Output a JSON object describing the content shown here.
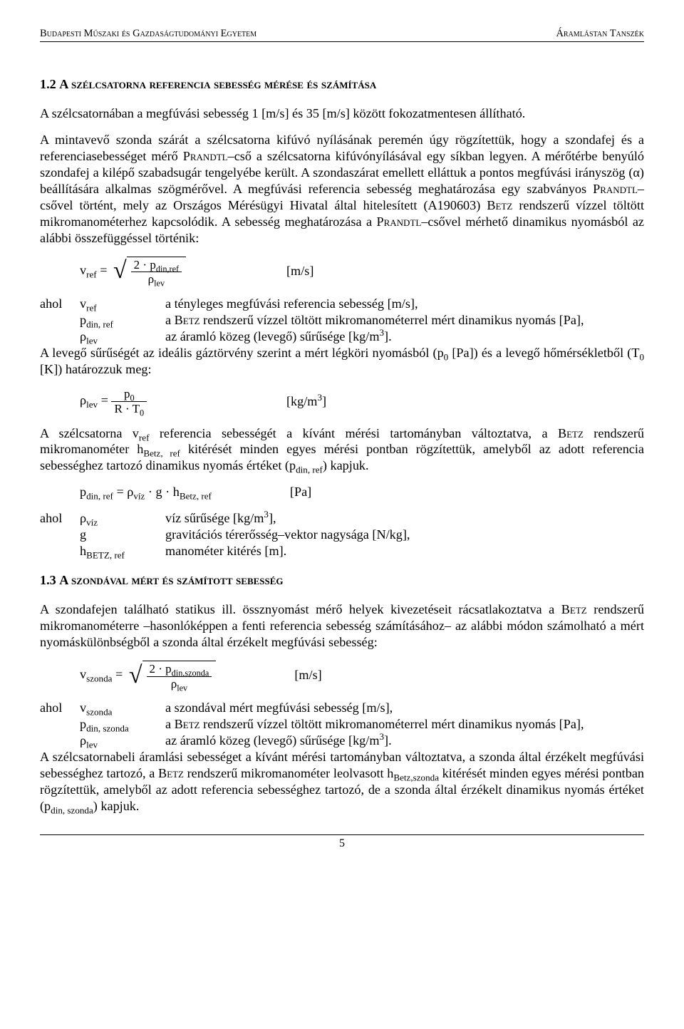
{
  "header": {
    "left": "Budapesti Műszaki és Gazdaságtudományi Egyetem",
    "right": "Áramlástan Tanszék"
  },
  "sec12": {
    "num": "1.2 ",
    "title": "A szélcsatorna referencia sebesség mérése és számítása"
  },
  "p1": "A szélcsatornában a megfúvási sebesség 1 [m/s] és 35 [m/s] között fokozatmentesen állítható.",
  "p2a": "A mintavevő szonda szárát a szélcsatorna kifúvó nyílásának peremén úgy rögzítettük, hogy a szondafej és a referenciasebességet mérő P",
  "p2b": "–cső a szélcsatorna kifúvónyílásával egy síkban legyen. A mérőtérbe benyúló szondafej a kilépő szabadsugár tengelyébe került. A szondaszárat emellett elláttuk a pontos megfúvási irányszög (α) beállítására alkalmas szögmérővel. A megfúvási referencia sebesség meghatározása egy szabványos P",
  "p2c": "–csővel történt, mely az Országos Mérésügyi Hivatal által hitelesített (A190603) B",
  "p2d": " rendszerű vízzel töltött mikromanométerhez kapcsolódik. A sebesség meghatározása a P",
  "p2e": "–csővel mérhető dinamikus nyomásból az alábbi összefüggéssel történik:",
  "prandtl": "randtl",
  "betz": "etz",
  "eq1": {
    "lhs_v": "v",
    "lhs_sub": "ref",
    "eq": " = ",
    "num": "2 · p",
    "num_sub": "din,ref",
    "den": "ρ",
    "den_sub": "lev",
    "unit": "[m/s]"
  },
  "defs1": {
    "ahol": "ahol",
    "r1_sym": "v",
    "r1_sub": "ref",
    "r1_txt": "a tényleges megfúvási referencia sebesség [m/s],",
    "r2_sym": "p",
    "r2_sub": "din, ref",
    "r2_txt_a": "a B",
    "r2_txt_b": " rendszerű vízzel töltött mikromanométerrel mért dinamikus nyomás [Pa],",
    "r3_sym": "ρ",
    "r3_sub": "lev",
    "r3_txt": "az áramló közeg (levegő) sűrűsége [kg/m",
    "r3_exp": "3",
    "r3_end": "]."
  },
  "p3a": "A levegő sűrűségét az ideális gáztörvény szerint a mért légköri nyomásból (p",
  "p3b": " [Pa]) és a levegő hőmérsékletből (T",
  "p3c": " [K]) határozzuk meg:",
  "sub0": "0",
  "eq2": {
    "lhs": "ρ",
    "lhs_sub": "lev",
    "eq": " = ",
    "num": "p",
    "num_sub": "0",
    "den": "R · T",
    "den_sub": "0",
    "unit": "[kg/m",
    "exp": "3",
    "unit_end": "]"
  },
  "p4a": "A szélcsatorna v",
  "p4a_sub": "ref",
  "p4b": " referencia sebességét a kívánt mérési tartományban változtatva, a B",
  "p4c": " rendszerű mikromanométer h",
  "p4c_sub": "Betz, ref",
  "p4d": " kitérését minden egyes mérési pontban rögzítettük, amelyből az adott referencia sebességhez tartozó dinamikus nyomás értéket (p",
  "p4d_sub": "din, ref",
  "p4e": ") kapjuk.",
  "eq3": {
    "lhs": "p",
    "lhs_sub": "din, ref",
    "eq": " = ρ",
    "rhs_sub1": "víz",
    "mid": " · g · h",
    "rhs_sub2": "Betz, ref",
    "unit": "[Pa]"
  },
  "defs2": {
    "ahol": "ahol",
    "r1_sym": "ρ",
    "r1_sub": "víz",
    "r1_txt": "víz sűrűsége [kg/m",
    "r1_exp": "3",
    "r1_end": "],",
    "r2_sym": "g",
    "r2_txt": "gravitációs térerősség–vektor nagysága [N/kg],",
    "r3_sym": "h",
    "r3_sub": "BETZ, ref",
    "r3_txt": "manométer kitérés [m]."
  },
  "sec13": {
    "num": "1.3 ",
    "title": "A szondával mért és számított sebesség"
  },
  "p5a": "A szondafejen található statikus ill. össznyomást mérő helyek kivezetéseit rácsatlakoztatva a B",
  "p5b": " rendszerű mikromanométerre –hasonlóképpen a fenti referencia sebesség számításához– az alábbi módon számolható a mért nyomáskülönbségből a szonda által érzékelt megfúvási sebesség:",
  "eq4": {
    "lhs": "v",
    "lhs_sub": "szonda",
    "eq": " = ",
    "num": "2 · p",
    "num_sub": "din,szonda",
    "den": "ρ",
    "den_sub": "lev",
    "unit": "[m/s]"
  },
  "defs3": {
    "ahol": "ahol",
    "r1_sym": "v",
    "r1_sub": "szonda",
    "r1_txt": "a szondával mért megfúvási sebesség [m/s],",
    "r2_sym": "p",
    "r2_sub": "din, szonda",
    "r2_txt_a": "a B",
    "r2_txt_b": " rendszerű vízzel töltött mikromanométerrel mért dinamikus nyomás [Pa],",
    "r3_sym": "ρ",
    "r3_sub": "lev",
    "r3_txt": "az áramló közeg (levegő) sűrűsége [kg/m",
    "r3_exp": "3",
    "r3_end": "]."
  },
  "p6a": "A szélcsatornabeli áramlási sebességet a kívánt mérési tartományban változtatva, a szonda által érzékelt megfúvási sebességhez tartozó, a B",
  "p6b": " rendszerű mikromanométer leolvasott h",
  "p6b_sub": "Betz,szonda",
  "p6c": " kitérését minden egyes mérési pontban rögzítettük, amelyből az adott referencia sebességhez tartozó, de a szonda által érzékelt dinamikus nyomás értéket (p",
  "p6c_sub": "din, szonda",
  "p6d": ") kapjuk.",
  "pagenum": "5"
}
